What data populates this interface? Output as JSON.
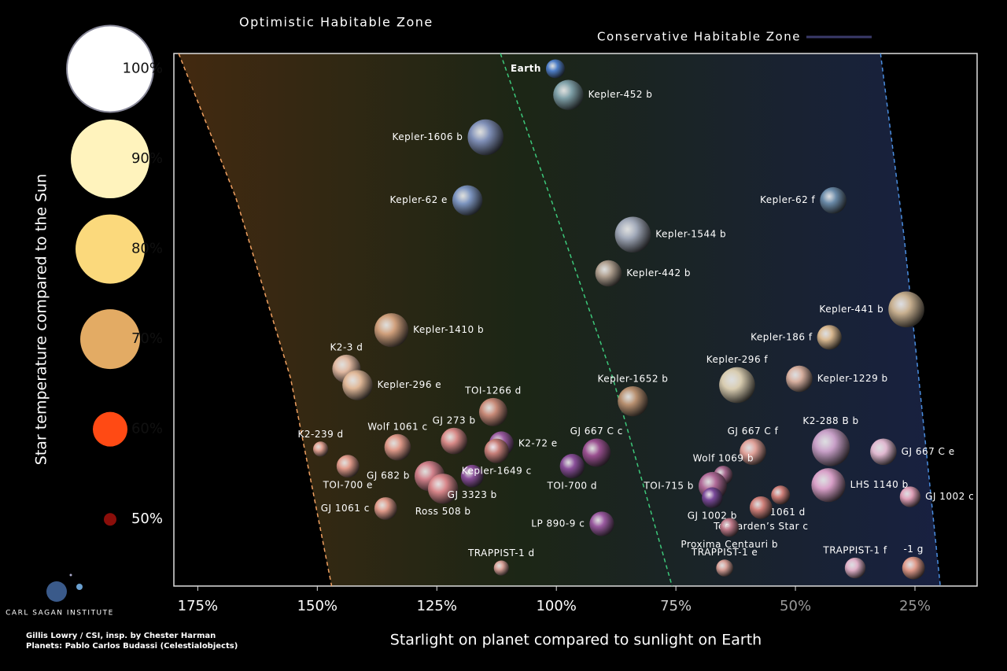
{
  "chart_data": {
    "type": "scatter",
    "x_label": "Starlight on planet compared to sunlight on Earth",
    "y_label": "Star temperature compared to the Sun",
    "xlim": [
      180,
      12
    ],
    "ylim": [
      42.6,
      101.7
    ],
    "xticks": [
      {
        "value": 175,
        "label": "175%"
      },
      {
        "value": 150,
        "label": "150%"
      },
      {
        "value": 125,
        "label": "125%"
      },
      {
        "value": 100,
        "label": "100%"
      },
      {
        "value": 75,
        "label": "75%"
      },
      {
        "value": 50,
        "label": "50%"
      },
      {
        "value": 25,
        "label": "25%"
      }
    ],
    "yticks": [
      {
        "value": 100,
        "label": "100%"
      },
      {
        "value": 90,
        "label": "90%"
      },
      {
        "value": 80,
        "label": "80%"
      },
      {
        "value": 70,
        "label": "70%"
      },
      {
        "value": 60,
        "label": "60%"
      },
      {
        "value": 50,
        "label": "50%"
      }
    ],
    "star_colors": [
      "#ffffff",
      "#fff3bd",
      "#fbd97c",
      "#e3ab64",
      "#ff4a14",
      "#8b0e0a"
    ],
    "zones": [
      {
        "name": "Optimistic Habitable Zone"
      },
      {
        "name": "Conservative Habitable Zone"
      }
    ],
    "boundaries": [
      {
        "color": "#f0a060",
        "x": [
          179.0,
          167.1,
          155.6,
          147.0
        ],
        "y": [
          101.7,
          85.8,
          65.7,
          42.6
        ]
      },
      {
        "color": "#3cc87a",
        "x": [
          111.7,
          101.3,
          88.2,
          75.8
        ],
        "y": [
          101.7,
          85.8,
          65.7,
          42.6
        ]
      },
      {
        "color": "#4a8ee0",
        "x": [
          32.2,
          27.3,
          19.7
        ],
        "y": [
          101.7,
          81.5,
          42.6
        ]
      }
    ],
    "labels": [
      "Earth",
      "Kepler-452 b",
      "Kepler-1606 b",
      "Kepler-62 e",
      "Kepler-62 f",
      "Kepler-1544 b",
      "Kepler-442 b",
      "Kepler-441 b",
      "Kepler-1410 b",
      "Kepler-186 f",
      "K2-3 d",
      "Kepler-296 e",
      "Kepler-296 f",
      "Kepler-1229 b",
      "Kepler-1652 b",
      "TOI-1266 d",
      "K2-239 d",
      "Wolf 1061 c",
      "GJ 273 b",
      "K2-72 e",
      "GJ 667 C c",
      "GJ 667 C f",
      "K2-288 B b",
      "GJ 667 C e",
      "TOI-700 e",
      "GJ 682 b",
      "Ross 508 b",
      "GJ 3323 b",
      "Kepler-1649 c",
      "TOI-700 d",
      "Wolf 1069 b",
      "TOI-715 b",
      "GJ 1002 b",
      "GJ 1061 c",
      "LHS 1140 b",
      "GJ 1061 d",
      "Teegarden’s Star c",
      "GJ 1002 c",
      "LP 890-9 c",
      "Proxima Centauri b",
      "TRAPPIST-1 d",
      "TRAPPIST-1 e",
      "TRAPPIST-1 f",
      "-1 g"
    ],
    "x": [
      100.2,
      97.5,
      114.8,
      118.6,
      42.1,
      84.0,
      89.1,
      26.8,
      134.5,
      42.9,
      143.9,
      141.6,
      62.2,
      49.2,
      84.0,
      113.2,
      149.3,
      133.2,
      121.4,
      111.5,
      91.6,
      58.9,
      42.6,
      31.6,
      143.6,
      126.5,
      123.7,
      117.6,
      112.5,
      96.7,
      65.1,
      67.3,
      67.4,
      135.7,
      43.1,
      53.1,
      57.2,
      26.0,
      90.5,
      63.8,
      111.5,
      64.8,
      37.5,
      25.3
    ],
    "y": [
      100.0,
      97.1,
      92.4,
      85.4,
      85.4,
      81.6,
      77.3,
      73.3,
      71.0,
      70.2,
      66.7,
      64.9,
      64.9,
      65.6,
      63.1,
      61.9,
      57.8,
      58.0,
      58.7,
      58.4,
      57.4,
      57.5,
      58.0,
      57.5,
      55.9,
      54.8,
      53.4,
      54.8,
      57.6,
      55.9,
      54.9,
      53.7,
      52.4,
      51.2,
      53.8,
      52.7,
      51.3,
      52.5,
      49.5,
      49.1,
      44.6,
      44.6,
      44.6,
      44.6
    ],
    "sizes": [
      1,
      1.6,
      1.9,
      1.6,
      1.4,
      1.9,
      1.4,
      1.9,
      1.8,
      1.3,
      1.5,
      1.6,
      1.9,
      1.4,
      1.6,
      1.5,
      0.8,
      1.4,
      1.4,
      1.3,
      1.5,
      1.4,
      2.0,
      1.4,
      1.2,
      1.6,
      1.6,
      1.2,
      1.3,
      1.3,
      1.0,
      1.5,
      1.1,
      1.2,
      1.8,
      1.0,
      1.2,
      1.1,
      1.3,
      1.0,
      0.8,
      0.9,
      1.1,
      1.2
    ],
    "colors": [
      "#4f7fc8",
      "#7fa0a8",
      "#8090b8",
      "#7d95c0",
      "#6a8aa8",
      "#a0a8b8",
      "#b0a090",
      "#c8b090",
      "#d0a07c",
      "#d8b890",
      "#e0b8a0",
      "#e0b898",
      "#d8ccb0",
      "#d8b0a0",
      "#b89070",
      "#c88a78",
      "#e0a090",
      "#e09a8a",
      "#d88a88",
      "#9a5aa0",
      "#9a5090",
      "#e0a098",
      "#c8a0c8",
      "#e0b8d0",
      "#e09a8a",
      "#d0808a",
      "#d8868a",
      "#8a4f9a",
      "#c8807a",
      "#8a4f9a",
      "#a86a90",
      "#b06a98",
      "#7a4a9a",
      "#e09a8a",
      "#d8a0c8",
      "#d0807a",
      "#d0807a",
      "#e0a0b8",
      "#9a5aa0",
      "#c07a8a",
      "#d8a098",
      "#d8a098",
      "#e0b0c8",
      "#e09a8a"
    ],
    "credits": [
      "Gillis Lowry / CSI, insp. by Chester Harman",
      "Planets: Pablo Carlos Budassi (Celestialobjects)"
    ],
    "logo": "CARL SAGAN INSTITUTE"
  }
}
